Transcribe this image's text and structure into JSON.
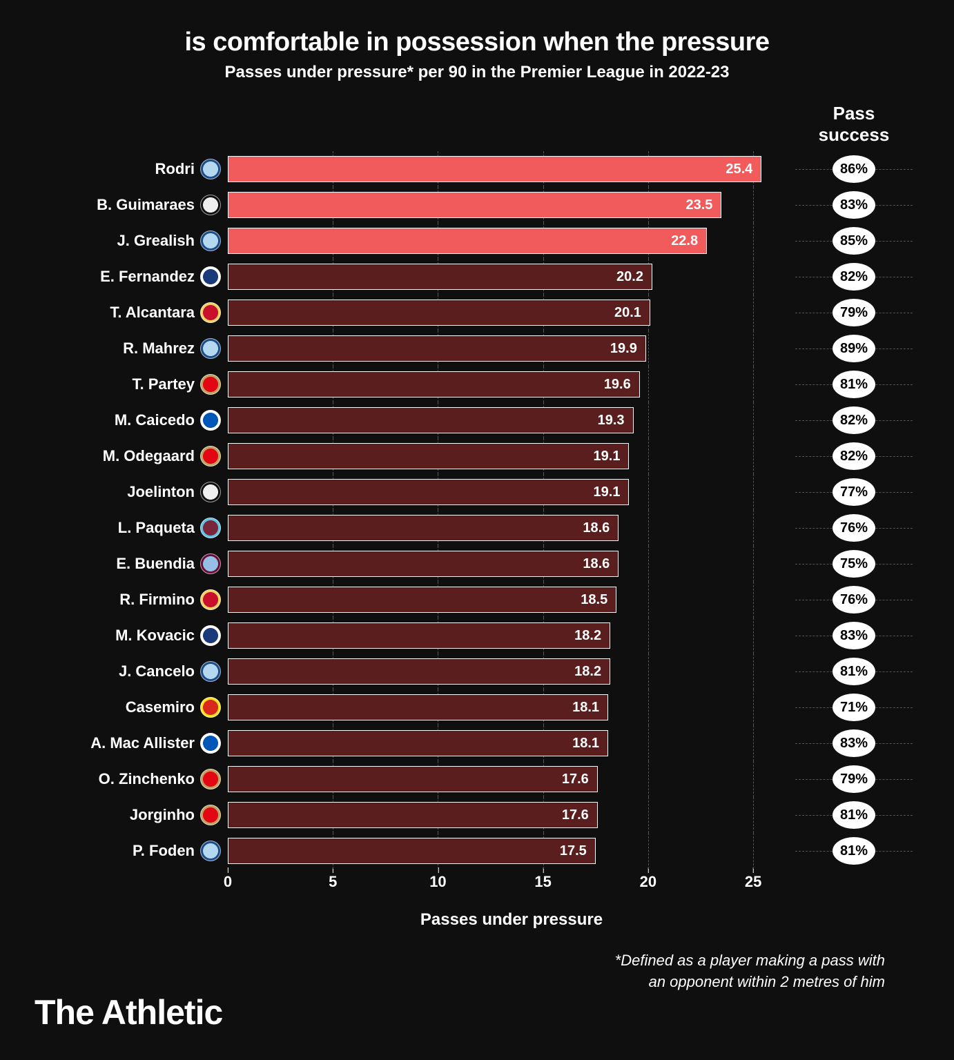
{
  "title": "is comfortable in possession when the pressure",
  "subtitle": "Passes under pressure* per 90 in the Premier League in 2022-23",
  "success_header": "Pass success",
  "x_axis_label": "Passes under pressure",
  "footnote_line1": "*Defined as a player making a pass with",
  "footnote_line2": "an opponent within 2 metres of him",
  "brand": "The Athletic",
  "chart": {
    "type": "bar",
    "x_max": 27,
    "ticks": [
      0,
      5,
      10,
      15,
      20,
      25
    ],
    "bar_border_color": "#ffffff",
    "highlight_color": "#f25b5b",
    "normal_color": "#5a1e1e",
    "background_color": "#0f0f0f",
    "grid_color": "#555555",
    "text_color": "#ffffff",
    "value_fontsize": 20,
    "label_fontsize": 22,
    "title_fontsize": 38,
    "subtitle_fontsize": 24
  },
  "players": [
    {
      "name": "Rodri",
      "value": 25.4,
      "success": "86%",
      "highlight": true,
      "badge_bg": "#b4d8f0",
      "badge_ring": "#1c4c8a"
    },
    {
      "name": "B. Guimaraes",
      "value": 23.5,
      "success": "83%",
      "highlight": true,
      "badge_bg": "#f0f0f0",
      "badge_ring": "#111111"
    },
    {
      "name": "J. Grealish",
      "value": 22.8,
      "success": "85%",
      "highlight": true,
      "badge_bg": "#b4d8f0",
      "badge_ring": "#1c4c8a"
    },
    {
      "name": "E. Fernandez",
      "value": 20.2,
      "success": "82%",
      "highlight": false,
      "badge_bg": "#1a3a7a",
      "badge_ring": "#ffffff"
    },
    {
      "name": "T. Alcantara",
      "value": 20.1,
      "success": "79%",
      "highlight": false,
      "badge_bg": "#c8102e",
      "badge_ring": "#f0d060"
    },
    {
      "name": "R. Mahrez",
      "value": 19.9,
      "success": "89%",
      "highlight": false,
      "badge_bg": "#b4d8f0",
      "badge_ring": "#1c4c8a"
    },
    {
      "name": "T. Partey",
      "value": 19.6,
      "success": "81%",
      "highlight": false,
      "badge_bg": "#e30613",
      "badge_ring": "#c0a060"
    },
    {
      "name": "M. Caicedo",
      "value": 19.3,
      "success": "82%",
      "highlight": false,
      "badge_bg": "#0057b8",
      "badge_ring": "#ffffff"
    },
    {
      "name": "M. Odegaard",
      "value": 19.1,
      "success": "82%",
      "highlight": false,
      "badge_bg": "#e30613",
      "badge_ring": "#c0a060"
    },
    {
      "name": "Joelinton",
      "value": 19.1,
      "success": "77%",
      "highlight": false,
      "badge_bg": "#f0f0f0",
      "badge_ring": "#111111"
    },
    {
      "name": "L. Paqueta",
      "value": 18.6,
      "success": "76%",
      "highlight": false,
      "badge_bg": "#7a263a",
      "badge_ring": "#60c0e0"
    },
    {
      "name": "E. Buendia",
      "value": 18.6,
      "success": "75%",
      "highlight": false,
      "badge_bg": "#95bfe5",
      "badge_ring": "#670e36"
    },
    {
      "name": "R. Firmino",
      "value": 18.5,
      "success": "76%",
      "highlight": false,
      "badge_bg": "#c8102e",
      "badge_ring": "#f0d060"
    },
    {
      "name": "M. Kovacic",
      "value": 18.2,
      "success": "83%",
      "highlight": false,
      "badge_bg": "#1a3a7a",
      "badge_ring": "#ffffff"
    },
    {
      "name": "J. Cancelo",
      "value": 18.2,
      "success": "81%",
      "highlight": false,
      "badge_bg": "#b4d8f0",
      "badge_ring": "#1c4c8a"
    },
    {
      "name": "Casemiro",
      "value": 18.1,
      "success": "71%",
      "highlight": false,
      "badge_bg": "#da291c",
      "badge_ring": "#fbe122"
    },
    {
      "name": "A. Mac Allister",
      "value": 18.1,
      "success": "83%",
      "highlight": false,
      "badge_bg": "#0057b8",
      "badge_ring": "#ffffff"
    },
    {
      "name": "O. Zinchenko",
      "value": 17.6,
      "success": "79%",
      "highlight": false,
      "badge_bg": "#e30613",
      "badge_ring": "#c0a060"
    },
    {
      "name": "Jorginho",
      "value": 17.6,
      "success": "81%",
      "highlight": false,
      "badge_bg": "#e30613",
      "badge_ring": "#c0a060"
    },
    {
      "name": "P. Foden",
      "value": 17.5,
      "success": "81%",
      "highlight": false,
      "badge_bg": "#b4d8f0",
      "badge_ring": "#1c4c8a"
    }
  ]
}
